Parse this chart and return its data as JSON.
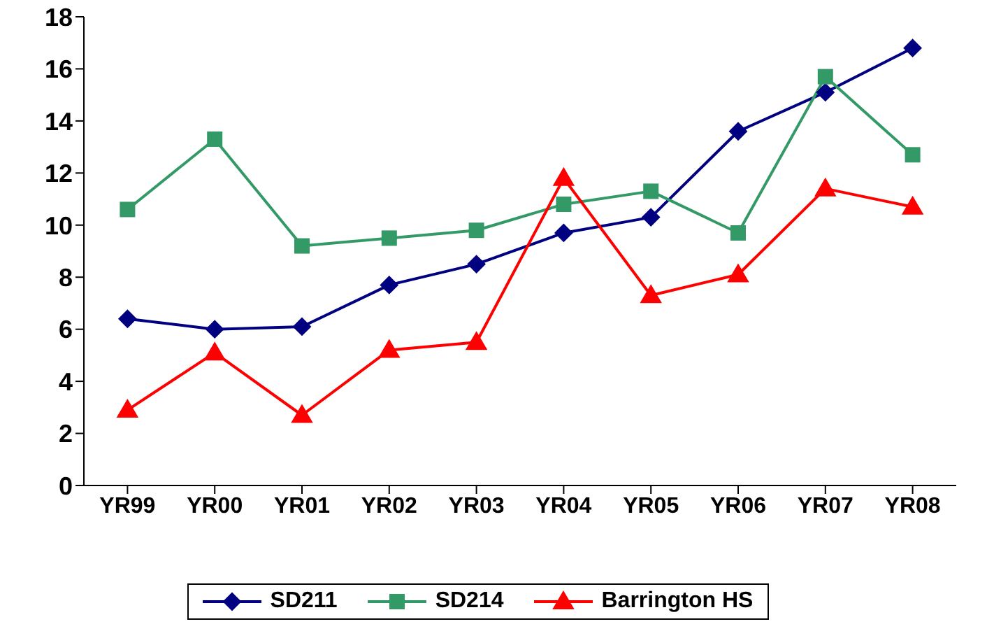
{
  "chart_data": {
    "type": "line",
    "categories": [
      "YR99",
      "YR00",
      "YR01",
      "YR02",
      "YR03",
      "YR04",
      "YR05",
      "YR06",
      "YR07",
      "YR08"
    ],
    "series": [
      {
        "name": "SD211",
        "color": "#000080",
        "marker": "diamond",
        "values": [
          6.4,
          6.0,
          6.1,
          7.7,
          8.5,
          9.7,
          10.3,
          13.6,
          15.1,
          16.8
        ]
      },
      {
        "name": "SD214",
        "color": "#339966",
        "marker": "square",
        "values": [
          10.6,
          13.3,
          9.2,
          9.5,
          9.8,
          10.8,
          11.3,
          9.7,
          15.7,
          12.7
        ]
      },
      {
        "name": "Barrington HS",
        "color": "#ff0000",
        "marker": "triangle",
        "values": [
          2.9,
          5.1,
          2.7,
          5.2,
          5.5,
          11.8,
          7.3,
          8.1,
          11.4,
          10.7
        ]
      }
    ],
    "ylim": [
      0,
      18
    ],
    "yticks": [
      0,
      2,
      4,
      6,
      8,
      10,
      12,
      14,
      16,
      18
    ],
    "grid": false,
    "legend": "bottom"
  }
}
